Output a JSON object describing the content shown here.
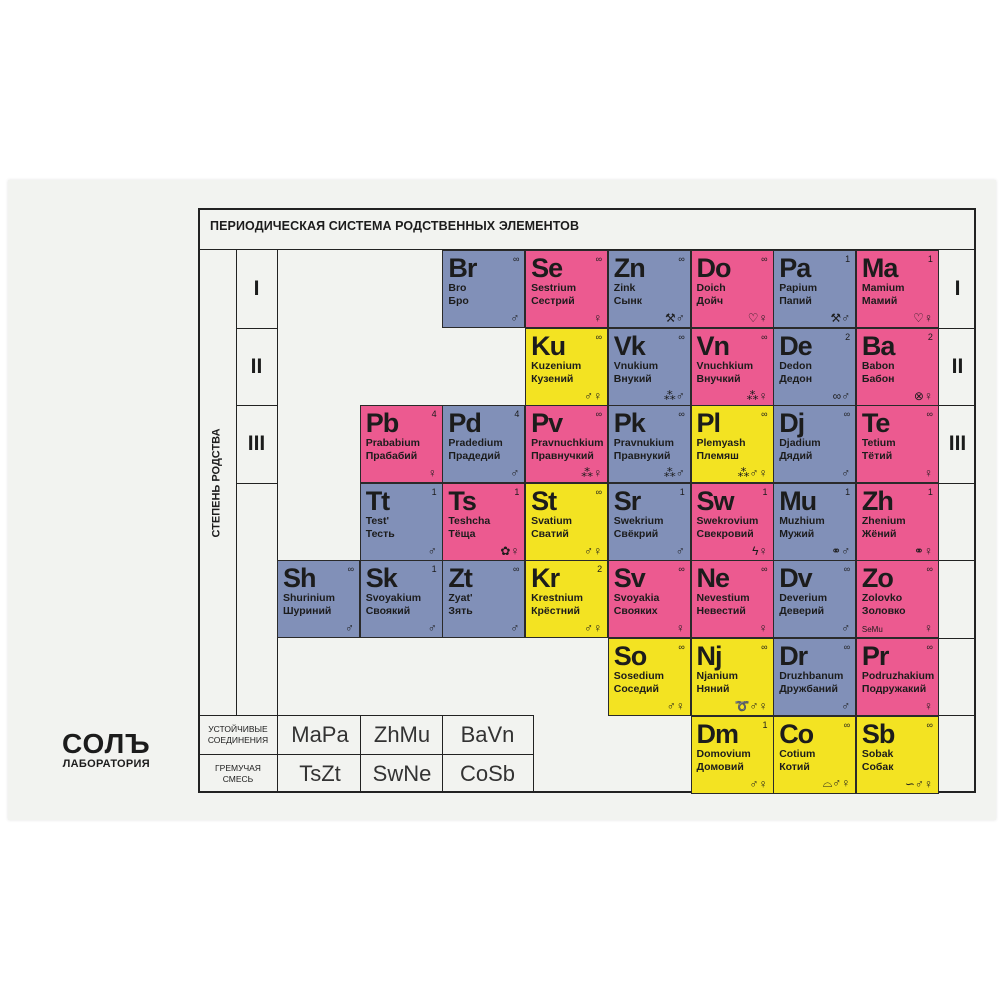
{
  "title": "ПЕРИОДИЧЕСКАЯ СИСТЕМА РОДСТВЕННЫХ ЭЛЕМЕНТОВ",
  "axis_label": "СТЕПЕНЬ РОДСТВА",
  "degrees": [
    "I",
    "II",
    "III"
  ],
  "colors": {
    "blue": "#8190b8",
    "pink": "#ec5a90",
    "yellow": "#f3e322"
  },
  "rows": [
    [
      {
        "sym": "Br",
        "lat": "Bro",
        "rus": "Бро",
        "num": "∞",
        "color": "blue",
        "icons": [
          "male"
        ]
      },
      {
        "sym": "Se",
        "lat": "Sestrium",
        "rus": "Сестрий",
        "num": "∞",
        "color": "pink",
        "icons": [
          "female"
        ]
      },
      {
        "sym": "Zn",
        "lat": "Zink",
        "rus": "Сынк",
        "num": "∞",
        "color": "blue",
        "icons": [
          "tools",
          "male"
        ]
      },
      {
        "sym": "Do",
        "lat": "Doich",
        "rus": "Дойч",
        "num": "∞",
        "color": "pink",
        "icons": [
          "hearts",
          "female"
        ]
      },
      {
        "sym": "Pa",
        "lat": "Papium",
        "rus": "Папий",
        "num": "1",
        "color": "blue",
        "icons": [
          "tools",
          "male"
        ]
      },
      {
        "sym": "Ma",
        "lat": "Mamium",
        "rus": "Мамий",
        "num": "1",
        "color": "pink",
        "icons": [
          "hearts",
          "female"
        ]
      }
    ],
    [
      {
        "sym": "Ku",
        "lat": "Kuzenium",
        "rus": "Кузений",
        "num": "∞",
        "color": "yellow",
        "icons": [
          "male",
          "female"
        ]
      },
      {
        "sym": "Vk",
        "lat": "Vnukium",
        "rus": "Внукий",
        "num": "∞",
        "color": "blue",
        "icons": [
          "children",
          "male"
        ]
      },
      {
        "sym": "Vn",
        "lat": "Vnuchkium",
        "rus": "Внучкий",
        "num": "∞",
        "color": "pink",
        "icons": [
          "children",
          "female"
        ]
      },
      {
        "sym": "De",
        "lat": "Dedon",
        "rus": "Дедон",
        "num": "2",
        "color": "blue",
        "icons": [
          "glasses",
          "male"
        ]
      },
      {
        "sym": "Ba",
        "lat": "Babon",
        "rus": "Бабон",
        "num": "2",
        "color": "pink",
        "icons": [
          "yarn",
          "female"
        ]
      }
    ],
    [
      {
        "sym": "Pb",
        "lat": "Prababium",
        "rus": "Прабабий",
        "num": "4",
        "color": "pink",
        "icons": [
          "female"
        ]
      },
      {
        "sym": "Pd",
        "lat": "Pradedium",
        "rus": "Прадедий",
        "num": "4",
        "color": "blue",
        "icons": [
          "male"
        ]
      },
      {
        "sym": "Pv",
        "lat": "Pravnuchkium",
        "rus": "Правнучкий",
        "num": "∞",
        "color": "pink",
        "icons": [
          "children",
          "female"
        ]
      },
      {
        "sym": "Pk",
        "lat": "Pravnukium",
        "rus": "Правнукий",
        "num": "∞",
        "color": "blue",
        "icons": [
          "children",
          "male"
        ]
      },
      {
        "sym": "Pl",
        "lat": "Plemyash",
        "rus": "Племяш",
        "num": "∞",
        "color": "yellow",
        "icons": [
          "children",
          "male",
          "female"
        ]
      },
      {
        "sym": "Dj",
        "lat": "Djadium",
        "rus": "Дядий",
        "num": "∞",
        "color": "blue",
        "icons": [
          "male"
        ]
      },
      {
        "sym": "Te",
        "lat": "Tetium",
        "rus": "Тётий",
        "num": "∞",
        "color": "pink",
        "icons": [
          "female"
        ]
      }
    ],
    [
      {
        "sym": "Tt",
        "lat": "Test'",
        "rus": "Тесть",
        "num": "1",
        "color": "blue",
        "icons": [
          "male"
        ]
      },
      {
        "sym": "Ts",
        "lat": "Teshcha",
        "rus": "Тёща",
        "num": "1",
        "color": "pink",
        "icons": [
          "flower",
          "female"
        ]
      },
      {
        "sym": "St",
        "lat": "Svatium",
        "rus": "Сватий",
        "num": "∞",
        "color": "yellow",
        "icons": [
          "male",
          "female"
        ]
      },
      {
        "sym": "Sr",
        "lat": "Swekrium",
        "rus": "Свёкрий",
        "num": "1",
        "color": "blue",
        "icons": [
          "male"
        ]
      },
      {
        "sym": "Sw",
        "lat": "Swekrovium",
        "rus": "Свекровий",
        "num": "1",
        "color": "pink",
        "icons": [
          "lightning",
          "female"
        ]
      },
      {
        "sym": "Mu",
        "lat": "Muzhium",
        "rus": "Мужий",
        "num": "1",
        "color": "blue",
        "icons": [
          "rings",
          "male"
        ]
      },
      {
        "sym": "Zh",
        "lat": "Zhenium",
        "rus": "Жёний",
        "num": "1",
        "color": "pink",
        "icons": [
          "rings",
          "female"
        ]
      }
    ],
    [
      {
        "sym": "Sh",
        "lat": "Shurinium",
        "rus": "Шуриний",
        "num": "∞",
        "color": "blue",
        "icons": [
          "male"
        ]
      },
      {
        "sym": "Sk",
        "lat": "Svoyakium",
        "rus": "Своякий",
        "num": "1",
        "color": "blue",
        "icons": [
          "male"
        ]
      },
      {
        "sym": "Zt",
        "lat": "Zyat'",
        "rus": "Зять",
        "num": "∞",
        "color": "blue",
        "icons": [
          "male"
        ]
      },
      {
        "sym": "Kr",
        "lat": "Krestnium",
        "rus": "Крёстний",
        "num": "2",
        "color": "yellow",
        "icons": [
          "male",
          "female"
        ]
      },
      {
        "sym": "Sv",
        "lat": "Svoyakia",
        "rus": "Свояких",
        "num": "∞",
        "color": "pink",
        "icons": [
          "female"
        ]
      },
      {
        "sym": "Ne",
        "lat": "Nevestium",
        "rus": "Невестий",
        "num": "∞",
        "color": "pink",
        "icons": [
          "female"
        ]
      },
      {
        "sym": "Dv",
        "lat": "Deverium",
        "rus": "Деверий",
        "num": "∞",
        "color": "blue",
        "icons": [
          "male"
        ]
      },
      {
        "sym": "Zo",
        "lat": "Zolovko",
        "rus": "Золовко",
        "num": "∞",
        "color": "pink",
        "icons": [
          "female"
        ],
        "extra": "SeMu"
      }
    ],
    [
      {
        "sym": "So",
        "lat": "Sosedium",
        "rus": "Соседий",
        "num": "∞",
        "color": "yellow",
        "icons": [
          "male",
          "female"
        ]
      },
      {
        "sym": "Nj",
        "lat": "Njanium",
        "rus": "Няний",
        "num": "∞",
        "color": "yellow",
        "icons": [
          "pacifier",
          "male",
          "female"
        ]
      },
      {
        "sym": "Dr",
        "lat": "Druzhbanum",
        "rus": "Дружбаний",
        "num": "∞",
        "color": "blue",
        "icons": [
          "male"
        ]
      },
      {
        "sym": "Pr",
        "lat": "Podruzhakium",
        "rus": "Подружакий",
        "num": "∞",
        "color": "pink",
        "icons": [
          "female"
        ]
      }
    ],
    [
      {
        "sym": "Dm",
        "lat": "Domovium",
        "rus": "Домовий",
        "num": "1",
        "color": "yellow",
        "icons": [
          "male",
          "female"
        ]
      },
      {
        "sym": "Co",
        "lat": "Cotium",
        "rus": "Котий",
        "num": "∞",
        "color": "yellow",
        "icons": [
          "cat",
          "male",
          "female"
        ]
      },
      {
        "sym": "Sb",
        "lat": "Sobak",
        "rus": "Собак",
        "num": "∞",
        "color": "yellow",
        "icons": [
          "bone",
          "male",
          "female"
        ]
      }
    ]
  ],
  "stable_compounds": {
    "label": "УСТОЙЧИВЫЕ СОЕДИНЕНИЯ",
    "items": [
      "MaPa",
      "ZhMu",
      "BaVn"
    ]
  },
  "explosive_mix": {
    "label": "ГРЕМУЧАЯ СМЕСЬ",
    "items": [
      "TsZt",
      "SwNe",
      "CoSb"
    ]
  },
  "logo": {
    "name": "СОЛЪ",
    "subtitle": "ЛАБОРАТОРИЯ"
  }
}
